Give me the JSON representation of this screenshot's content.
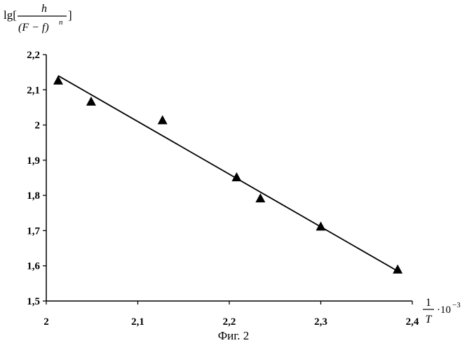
{
  "chart_data": {
    "type": "scatter",
    "title": "",
    "ylabel": {
      "prefix": "lg[",
      "numerator": "h",
      "denominator": "(F − f)",
      "exponent": "n",
      "suffix": "]"
    },
    "xlabel": {
      "numerator": "1",
      "denominator": "T",
      "multiplier": "·10",
      "exponent": "−3"
    },
    "xlim": [
      2.0,
      2.4
    ],
    "ylim": [
      1.5,
      2.2
    ],
    "xticks": [
      "2",
      "2,1",
      "2,2",
      "2,3",
      "2,4"
    ],
    "xtick_values": [
      2.0,
      2.1,
      2.2,
      2.3,
      2.4
    ],
    "yticks": [
      "1,5",
      "1,6",
      "1,7",
      "1,8",
      "1,9",
      "2",
      "2,1",
      "2,2"
    ],
    "ytick_values": [
      1.5,
      1.6,
      1.7,
      1.8,
      1.9,
      2.0,
      2.1,
      2.2
    ],
    "grid": false,
    "legend": "none",
    "marker": "triangle",
    "marker_color": "#000000",
    "points": [
      {
        "x": 2.013,
        "y": 2.125
      },
      {
        "x": 2.049,
        "y": 2.065
      },
      {
        "x": 2.127,
        "y": 2.012
      },
      {
        "x": 2.208,
        "y": 1.85
      },
      {
        "x": 2.234,
        "y": 1.79
      },
      {
        "x": 2.3,
        "y": 1.71
      },
      {
        "x": 2.384,
        "y": 1.588
      }
    ],
    "trendline": {
      "x": [
        2.013,
        2.384
      ],
      "y": [
        2.14,
        1.585
      ]
    }
  },
  "caption": "Фиг. 2"
}
